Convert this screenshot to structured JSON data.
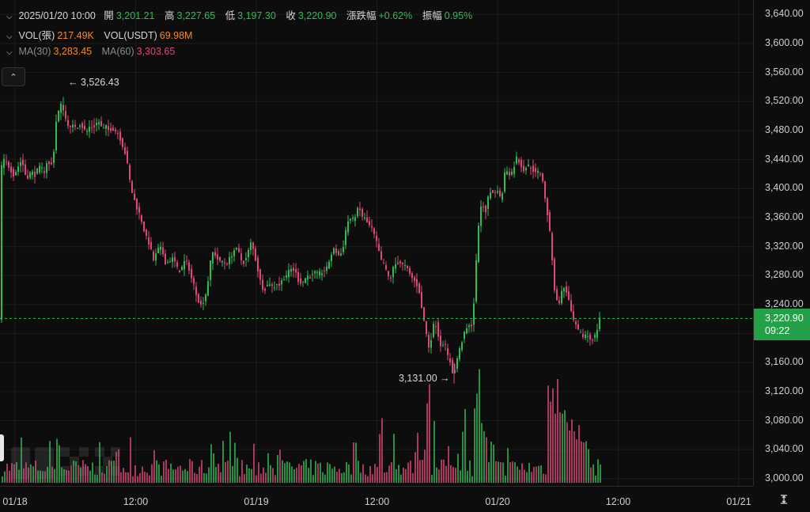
{
  "legend": {
    "row1": {
      "date": "2025/01/20 10:00",
      "open_label": "開",
      "open": "3,201.21",
      "high_label": "高",
      "high": "3,227.65",
      "low_label": "低",
      "low": "3,197.30",
      "close_label": "收",
      "close": "3,220.90",
      "change_label": "漲跌幅",
      "change": "+0.62%",
      "amp_label": "振幅",
      "amp": "0.95%"
    },
    "row2": {
      "vol_label": "VOL(張)",
      "vol": "217.49K",
      "volusdt_label": "VOL(USDT)",
      "volusdt": "69.98M"
    },
    "row3": {
      "ma30_label": "MA(30)",
      "ma30": "3,283.45",
      "ma60_label": "MA(60)",
      "ma60": "3,303.65"
    }
  },
  "annotations": {
    "high": "3,526.43",
    "low": "3,131.00"
  },
  "last_price": {
    "price": "3,220.90",
    "countdown": "09:22"
  },
  "colors": {
    "up": "#2ebd55",
    "down": "#e0457b",
    "grid": "#1c1c1c",
    "background": "#0d0d0d"
  },
  "icons": {
    "collapse": "chevron-up-icon",
    "settings": "axis-settings-icon"
  },
  "chart_data": {
    "type": "candlestick",
    "price_axis": {
      "range": [
        2990,
        3660
      ],
      "ticks": [
        "3,000.00",
        "3,040.00",
        "3,080.00",
        "3,120.00",
        "3,160.00",
        "3,200.00",
        "3,240.00",
        "3,280.00",
        "3,320.00",
        "3,360.00",
        "3,400.00",
        "3,440.00",
        "3,480.00",
        "3,520.00",
        "3,560.00",
        "3,600.00",
        "3,640.00"
      ]
    },
    "time_axis": {
      "ticks": [
        "01/18",
        "12:00",
        "01/19",
        "12:00",
        "01/20",
        "12:00",
        "01/21"
      ]
    },
    "grid": true,
    "last_price": 3220.9,
    "close_path": [
      [
        0,
        3425
      ],
      [
        6,
        3440
      ],
      [
        12,
        3430
      ],
      [
        18,
        3418
      ],
      [
        24,
        3432
      ],
      [
        28,
        3440
      ],
      [
        32,
        3420
      ],
      [
        36,
        3416
      ],
      [
        40,
        3424
      ],
      [
        44,
        3418
      ],
      [
        48,
        3426
      ],
      [
        52,
        3430
      ],
      [
        56,
        3422
      ],
      [
        60,
        3438
      ],
      [
        64,
        3430
      ],
      [
        67,
        3436
      ],
      [
        70,
        3470
      ],
      [
        72,
        3500
      ],
      [
        76,
        3510
      ],
      [
        79,
        3520
      ],
      [
        82,
        3500
      ],
      [
        86,
        3490
      ],
      [
        90,
        3482
      ],
      [
        94,
        3488
      ],
      [
        98,
        3484
      ],
      [
        102,
        3490
      ],
      [
        106,
        3482
      ],
      [
        110,
        3478
      ],
      [
        114,
        3486
      ],
      [
        118,
        3484
      ],
      [
        122,
        3490
      ],
      [
        126,
        3492
      ],
      [
        130,
        3480
      ],
      [
        134,
        3486
      ],
      [
        138,
        3480
      ],
      [
        142,
        3484
      ],
      [
        146,
        3480
      ],
      [
        150,
        3476
      ],
      [
        154,
        3464
      ],
      [
        158,
        3452
      ],
      [
        162,
        3430
      ],
      [
        166,
        3400
      ],
      [
        170,
        3385
      ],
      [
        174,
        3372
      ],
      [
        178,
        3362
      ],
      [
        182,
        3345
      ],
      [
        186,
        3330
      ],
      [
        190,
        3322
      ],
      [
        194,
        3300
      ],
      [
        198,
        3310
      ],
      [
        202,
        3320
      ],
      [
        206,
        3312
      ],
      [
        210,
        3296
      ],
      [
        214,
        3300
      ],
      [
        218,
        3304
      ],
      [
        222,
        3298
      ],
      [
        226,
        3285
      ],
      [
        230,
        3290
      ],
      [
        234,
        3300
      ],
      [
        238,
        3296
      ],
      [
        242,
        3278
      ],
      [
        246,
        3266
      ],
      [
        250,
        3250
      ],
      [
        254,
        3238
      ],
      [
        258,
        3246
      ],
      [
        262,
        3260
      ],
      [
        266,
        3296
      ],
      [
        270,
        3314
      ],
      [
        274,
        3306
      ],
      [
        278,
        3298
      ],
      [
        282,
        3300
      ],
      [
        286,
        3296
      ],
      [
        290,
        3302
      ],
      [
        294,
        3310
      ],
      [
        298,
        3318
      ],
      [
        302,
        3312
      ],
      [
        306,
        3300
      ],
      [
        310,
        3298
      ],
      [
        314,
        3312
      ],
      [
        318,
        3326
      ],
      [
        322,
        3310
      ],
      [
        326,
        3290
      ],
      [
        330,
        3270
      ],
      [
        334,
        3260
      ],
      [
        338,
        3266
      ],
      [
        342,
        3270
      ],
      [
        346,
        3262
      ],
      [
        350,
        3270
      ],
      [
        354,
        3266
      ],
      [
        358,
        3276
      ],
      [
        362,
        3280
      ],
      [
        366,
        3286
      ],
      [
        370,
        3290
      ],
      [
        374,
        3284
      ],
      [
        378,
        3272
      ],
      [
        382,
        3270
      ],
      [
        386,
        3276
      ],
      [
        390,
        3280
      ],
      [
        394,
        3278
      ],
      [
        398,
        3284
      ],
      [
        402,
        3282
      ],
      [
        406,
        3284
      ],
      [
        410,
        3286
      ],
      [
        414,
        3290
      ],
      [
        418,
        3306
      ],
      [
        422,
        3316
      ],
      [
        426,
        3312
      ],
      [
        430,
        3306
      ],
      [
        434,
        3318
      ],
      [
        438,
        3346
      ],
      [
        442,
        3360
      ],
      [
        446,
        3356
      ],
      [
        450,
        3364
      ],
      [
        454,
        3374
      ],
      [
        458,
        3362
      ],
      [
        462,
        3358
      ],
      [
        466,
        3350
      ],
      [
        470,
        3346
      ],
      [
        474,
        3334
      ],
      [
        478,
        3320
      ],
      [
        482,
        3300
      ],
      [
        486,
        3296
      ],
      [
        490,
        3280
      ],
      [
        494,
        3276
      ],
      [
        498,
        3292
      ],
      [
        502,
        3298
      ],
      [
        506,
        3298
      ],
      [
        510,
        3294
      ],
      [
        514,
        3292
      ],
      [
        518,
        3282
      ],
      [
        522,
        3276
      ],
      [
        526,
        3270
      ],
      [
        530,
        3262
      ],
      [
        534,
        3230
      ],
      [
        538,
        3210
      ],
      [
        542,
        3180
      ],
      [
        546,
        3196
      ],
      [
        550,
        3220
      ],
      [
        554,
        3200
      ],
      [
        558,
        3182
      ],
      [
        562,
        3190
      ],
      [
        566,
        3170
      ],
      [
        570,
        3160
      ],
      [
        574,
        3140
      ],
      [
        578,
        3164
      ],
      [
        582,
        3180
      ],
      [
        586,
        3196
      ],
      [
        590,
        3206
      ],
      [
        594,
        3210
      ],
      [
        598,
        3214
      ],
      [
        602,
        3290
      ],
      [
        606,
        3360
      ],
      [
        610,
        3380
      ],
      [
        614,
        3366
      ],
      [
        618,
        3390
      ],
      [
        622,
        3398
      ],
      [
        626,
        3392
      ],
      [
        630,
        3400
      ],
      [
        634,
        3380
      ],
      [
        638,
        3420
      ],
      [
        642,
        3426
      ],
      [
        646,
        3418
      ],
      [
        650,
        3430
      ],
      [
        654,
        3444
      ],
      [
        658,
        3434
      ],
      [
        662,
        3426
      ],
      [
        666,
        3430
      ],
      [
        670,
        3432
      ],
      [
        674,
        3426
      ],
      [
        678,
        3420
      ],
      [
        682,
        3424
      ],
      [
        686,
        3416
      ],
      [
        690,
        3380
      ],
      [
        694,
        3356
      ],
      [
        698,
        3310
      ],
      [
        702,
        3254
      ],
      [
        706,
        3238
      ],
      [
        710,
        3256
      ],
      [
        714,
        3264
      ],
      [
        718,
        3254
      ],
      [
        722,
        3230
      ],
      [
        726,
        3216
      ],
      [
        730,
        3206
      ],
      [
        734,
        3200
      ],
      [
        738,
        3196
      ],
      [
        742,
        3200
      ],
      [
        746,
        3192
      ],
      [
        750,
        3194
      ],
      [
        754,
        3198
      ],
      [
        758,
        3220.9
      ]
    ],
    "volume_profile": "relative bar heights below price, spikes near 01/19 21:00 and 01/20 05:00-09:00"
  }
}
